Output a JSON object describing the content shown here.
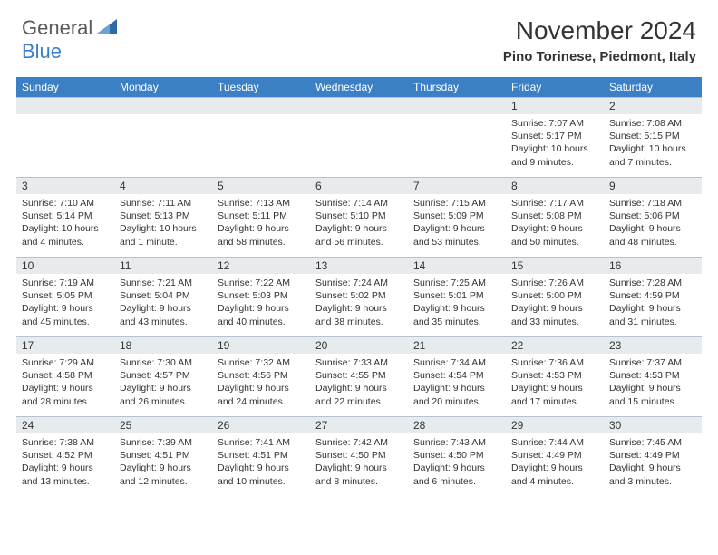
{
  "logo": {
    "textA": "General",
    "textB": "Blue"
  },
  "title": "November 2024",
  "location": "Pino Torinese, Piedmont, Italy",
  "colors": {
    "header_bg": "#3b7fc4",
    "header_fg": "#ffffff",
    "daynum_bg": "#e8ebee",
    "border": "#b8c2cc",
    "text": "#333333",
    "logo_gray": "#5a5a5a",
    "logo_blue": "#3b7fc4"
  },
  "weekdays": [
    "Sunday",
    "Monday",
    "Tuesday",
    "Wednesday",
    "Thursday",
    "Friday",
    "Saturday"
  ],
  "weeks": [
    [
      null,
      null,
      null,
      null,
      null,
      {
        "n": "1",
        "sr": "Sunrise: 7:07 AM",
        "ss": "Sunset: 5:17 PM",
        "dl": "Daylight: 10 hours and 9 minutes."
      },
      {
        "n": "2",
        "sr": "Sunrise: 7:08 AM",
        "ss": "Sunset: 5:15 PM",
        "dl": "Daylight: 10 hours and 7 minutes."
      }
    ],
    [
      {
        "n": "3",
        "sr": "Sunrise: 7:10 AM",
        "ss": "Sunset: 5:14 PM",
        "dl": "Daylight: 10 hours and 4 minutes."
      },
      {
        "n": "4",
        "sr": "Sunrise: 7:11 AM",
        "ss": "Sunset: 5:13 PM",
        "dl": "Daylight: 10 hours and 1 minute."
      },
      {
        "n": "5",
        "sr": "Sunrise: 7:13 AM",
        "ss": "Sunset: 5:11 PM",
        "dl": "Daylight: 9 hours and 58 minutes."
      },
      {
        "n": "6",
        "sr": "Sunrise: 7:14 AM",
        "ss": "Sunset: 5:10 PM",
        "dl": "Daylight: 9 hours and 56 minutes."
      },
      {
        "n": "7",
        "sr": "Sunrise: 7:15 AM",
        "ss": "Sunset: 5:09 PM",
        "dl": "Daylight: 9 hours and 53 minutes."
      },
      {
        "n": "8",
        "sr": "Sunrise: 7:17 AM",
        "ss": "Sunset: 5:08 PM",
        "dl": "Daylight: 9 hours and 50 minutes."
      },
      {
        "n": "9",
        "sr": "Sunrise: 7:18 AM",
        "ss": "Sunset: 5:06 PM",
        "dl": "Daylight: 9 hours and 48 minutes."
      }
    ],
    [
      {
        "n": "10",
        "sr": "Sunrise: 7:19 AM",
        "ss": "Sunset: 5:05 PM",
        "dl": "Daylight: 9 hours and 45 minutes."
      },
      {
        "n": "11",
        "sr": "Sunrise: 7:21 AM",
        "ss": "Sunset: 5:04 PM",
        "dl": "Daylight: 9 hours and 43 minutes."
      },
      {
        "n": "12",
        "sr": "Sunrise: 7:22 AM",
        "ss": "Sunset: 5:03 PM",
        "dl": "Daylight: 9 hours and 40 minutes."
      },
      {
        "n": "13",
        "sr": "Sunrise: 7:24 AM",
        "ss": "Sunset: 5:02 PM",
        "dl": "Daylight: 9 hours and 38 minutes."
      },
      {
        "n": "14",
        "sr": "Sunrise: 7:25 AM",
        "ss": "Sunset: 5:01 PM",
        "dl": "Daylight: 9 hours and 35 minutes."
      },
      {
        "n": "15",
        "sr": "Sunrise: 7:26 AM",
        "ss": "Sunset: 5:00 PM",
        "dl": "Daylight: 9 hours and 33 minutes."
      },
      {
        "n": "16",
        "sr": "Sunrise: 7:28 AM",
        "ss": "Sunset: 4:59 PM",
        "dl": "Daylight: 9 hours and 31 minutes."
      }
    ],
    [
      {
        "n": "17",
        "sr": "Sunrise: 7:29 AM",
        "ss": "Sunset: 4:58 PM",
        "dl": "Daylight: 9 hours and 28 minutes."
      },
      {
        "n": "18",
        "sr": "Sunrise: 7:30 AM",
        "ss": "Sunset: 4:57 PM",
        "dl": "Daylight: 9 hours and 26 minutes."
      },
      {
        "n": "19",
        "sr": "Sunrise: 7:32 AM",
        "ss": "Sunset: 4:56 PM",
        "dl": "Daylight: 9 hours and 24 minutes."
      },
      {
        "n": "20",
        "sr": "Sunrise: 7:33 AM",
        "ss": "Sunset: 4:55 PM",
        "dl": "Daylight: 9 hours and 22 minutes."
      },
      {
        "n": "21",
        "sr": "Sunrise: 7:34 AM",
        "ss": "Sunset: 4:54 PM",
        "dl": "Daylight: 9 hours and 20 minutes."
      },
      {
        "n": "22",
        "sr": "Sunrise: 7:36 AM",
        "ss": "Sunset: 4:53 PM",
        "dl": "Daylight: 9 hours and 17 minutes."
      },
      {
        "n": "23",
        "sr": "Sunrise: 7:37 AM",
        "ss": "Sunset: 4:53 PM",
        "dl": "Daylight: 9 hours and 15 minutes."
      }
    ],
    [
      {
        "n": "24",
        "sr": "Sunrise: 7:38 AM",
        "ss": "Sunset: 4:52 PM",
        "dl": "Daylight: 9 hours and 13 minutes."
      },
      {
        "n": "25",
        "sr": "Sunrise: 7:39 AM",
        "ss": "Sunset: 4:51 PM",
        "dl": "Daylight: 9 hours and 12 minutes."
      },
      {
        "n": "26",
        "sr": "Sunrise: 7:41 AM",
        "ss": "Sunset: 4:51 PM",
        "dl": "Daylight: 9 hours and 10 minutes."
      },
      {
        "n": "27",
        "sr": "Sunrise: 7:42 AM",
        "ss": "Sunset: 4:50 PM",
        "dl": "Daylight: 9 hours and 8 minutes."
      },
      {
        "n": "28",
        "sr": "Sunrise: 7:43 AM",
        "ss": "Sunset: 4:50 PM",
        "dl": "Daylight: 9 hours and 6 minutes."
      },
      {
        "n": "29",
        "sr": "Sunrise: 7:44 AM",
        "ss": "Sunset: 4:49 PM",
        "dl": "Daylight: 9 hours and 4 minutes."
      },
      {
        "n": "30",
        "sr": "Sunrise: 7:45 AM",
        "ss": "Sunset: 4:49 PM",
        "dl": "Daylight: 9 hours and 3 minutes."
      }
    ]
  ]
}
